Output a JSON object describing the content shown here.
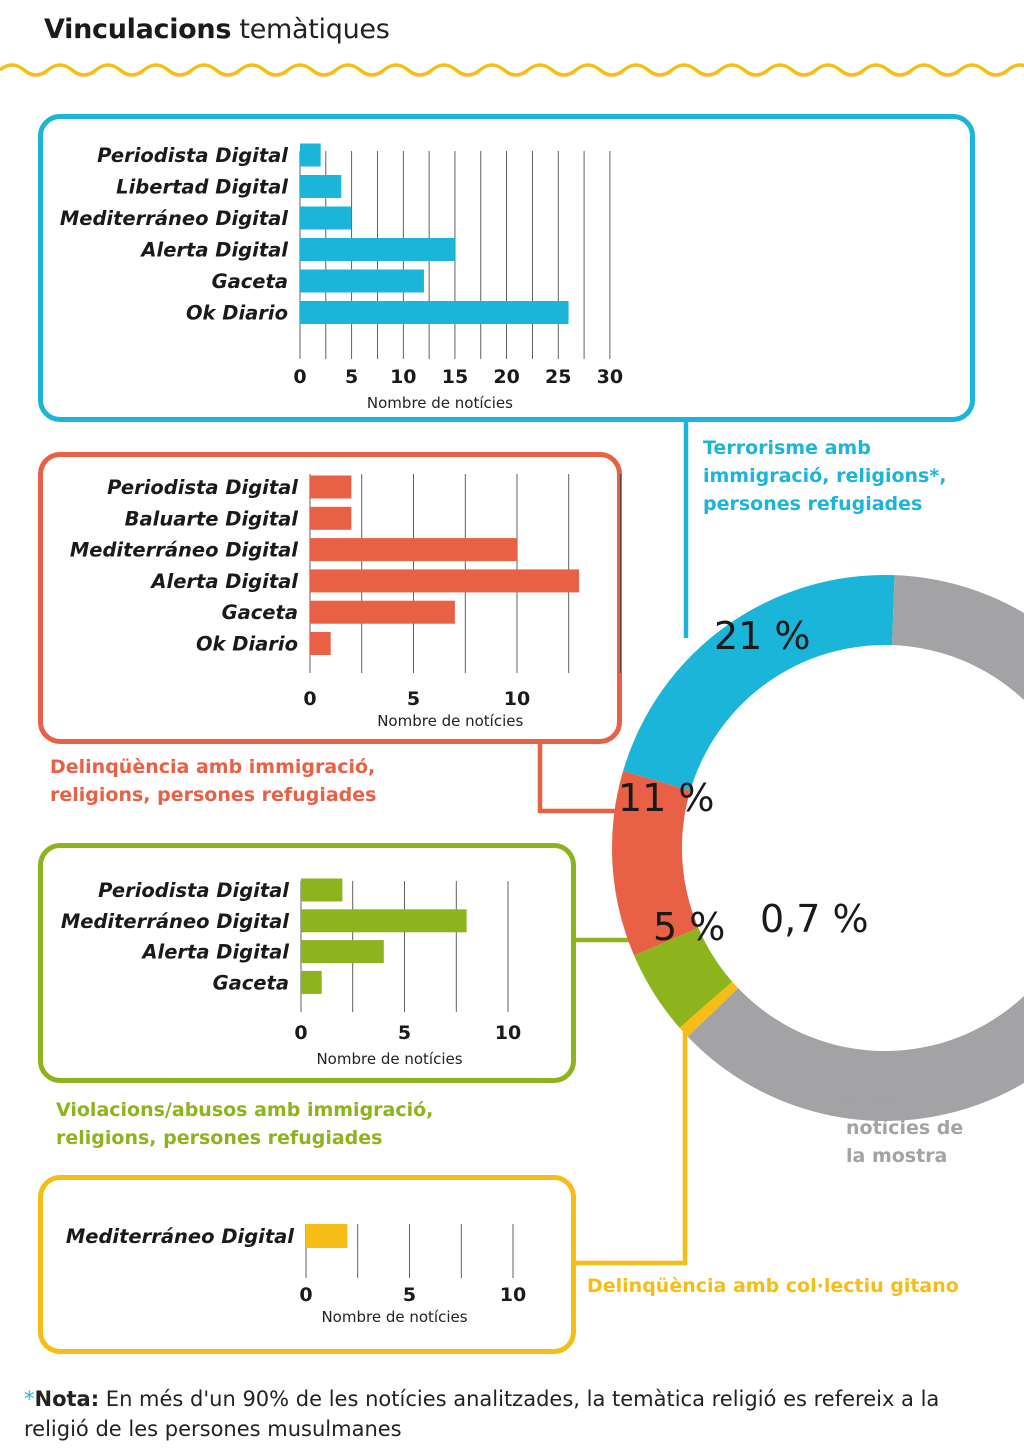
{
  "title": {
    "bold": "Vinculacions",
    "light": "temàtiques"
  },
  "colors": {
    "blue": "#1bb5da",
    "red": "#e86045",
    "green": "#8db41c",
    "yellow": "#f6bd16",
    "gray": "#a3a3a5",
    "wave": "#f6bd16"
  },
  "donut": {
    "segments": [
      {
        "label": "21 %",
        "value": 21,
        "color": "#1bb5da"
      },
      {
        "label": "11 %",
        "value": 11,
        "color": "#e86045"
      },
      {
        "label": "5 %",
        "value": 5,
        "color": "#8db41c"
      },
      {
        "label": "0,7 %",
        "value": 0.7,
        "color": "#f6bd16"
      },
      {
        "label": "",
        "value": 62.3,
        "color": "#a3a3a5"
      }
    ],
    "rest_label": "Resta de notícies de la mostra"
  },
  "chart_data": [
    {
      "type": "bar",
      "orientation": "horizontal",
      "caption": "Terrorisme amb immigració, religions*, persones refugiades",
      "categories": [
        "Periodista Digital",
        "Libertad Digital",
        "Mediterráneo Digital",
        "Alerta Digital",
        "Gaceta",
        "Ok Diario"
      ],
      "values": [
        2,
        4,
        5,
        15,
        12,
        26
      ],
      "xlabel": "Nombre de notícies",
      "xticks": [
        "0",
        "5",
        "10",
        "15",
        "20",
        "25",
        "30"
      ],
      "xlim": [
        0,
        30
      ],
      "grid": true,
      "color": "#1bb5da"
    },
    {
      "type": "bar",
      "orientation": "horizontal",
      "caption": "Delinqüència amb immigració, religions, persones refugiades",
      "categories": [
        "Periodista Digital",
        "Baluarte Digital",
        "Mediterráneo Digital",
        "Alerta Digital",
        "Gaceta",
        "Ok Diario"
      ],
      "values": [
        2,
        2,
        10,
        13,
        7,
        1
      ],
      "xlabel": "Nombre de notícies",
      "xticks": [
        "0",
        "5",
        "10"
      ],
      "xlim": [
        0,
        15
      ],
      "grid": true,
      "color": "#e86045"
    },
    {
      "type": "bar",
      "orientation": "horizontal",
      "caption": "Violacions/abusos amb immigració, religions,  persones refugiades",
      "categories": [
        "Periodista Digital",
        "Mediterráneo Digital",
        "Alerta Digital",
        "Gaceta"
      ],
      "values": [
        2,
        8,
        4,
        1
      ],
      "xlabel": "Nombre de notícies",
      "xticks": [
        "0",
        "5",
        "10"
      ],
      "xlim": [
        0,
        10
      ],
      "grid": true,
      "color": "#8db41c"
    },
    {
      "type": "bar",
      "orientation": "horizontal",
      "caption": "Delinqüència amb col·lectiu gitano",
      "categories": [
        "Mediterráneo Digital"
      ],
      "values": [
        2
      ],
      "xlabel": "Nombre de notícies",
      "xticks": [
        "0",
        "5",
        "10"
      ],
      "xlim": [
        0,
        10
      ],
      "grid": true,
      "color": "#f6bd16"
    }
  ],
  "note": {
    "star": "*",
    "label": "Nota:",
    "text": " En més d'un 90% de les notícies analitzades, la temàtica religió es refereix a la religió de les persones musulmanes"
  }
}
